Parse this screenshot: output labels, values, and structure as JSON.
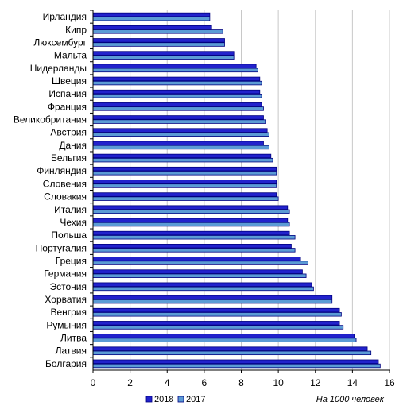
{
  "chart_data": {
    "type": "bar",
    "orientation": "horizontal",
    "categories": [
      "Ирландия",
      "Кипр",
      "Люксембург",
      "Мальта",
      "Нидерланды",
      "Швеция",
      "Испания",
      "Франция",
      "Великобритания",
      "Австрия",
      "Дания",
      "Бельгия",
      "Финляндия",
      "Словения",
      "Словакия",
      "Италия",
      "Чехия",
      "Польша",
      "Португалия",
      "Греция",
      "Германия",
      "Эстония",
      "Хорватия",
      "Венгрия",
      "Румыния",
      "Литва",
      "Латвия",
      "Болгария"
    ],
    "series": [
      {
        "name": "2018",
        "color": "#2222cc",
        "values": [
          6.3,
          6.4,
          7.1,
          7.6,
          8.8,
          9.0,
          9.0,
          9.1,
          9.2,
          9.4,
          9.2,
          9.6,
          9.9,
          9.9,
          9.9,
          10.5,
          10.5,
          10.6,
          10.7,
          11.2,
          11.3,
          11.8,
          12.9,
          13.3,
          13.3,
          14.1,
          14.8,
          15.4
        ]
      },
      {
        "name": "2017",
        "color": "#5b9bd5",
        "values": [
          6.3,
          7.0,
          7.1,
          7.6,
          8.9,
          9.1,
          9.1,
          9.2,
          9.3,
          9.5,
          9.5,
          9.7,
          9.9,
          9.9,
          10.0,
          10.6,
          10.6,
          10.9,
          10.9,
          11.6,
          11.5,
          11.9,
          12.9,
          13.4,
          13.5,
          14.2,
          15.0,
          15.5
        ]
      }
    ],
    "xlim": [
      0,
      16
    ],
    "xticks": [
      "0",
      "2",
      "4",
      "6",
      "8",
      "10",
      "12",
      "14",
      "16"
    ],
    "xlabel": "На 1000 человек",
    "grid": "vertical",
    "legend_position": "bottom"
  }
}
